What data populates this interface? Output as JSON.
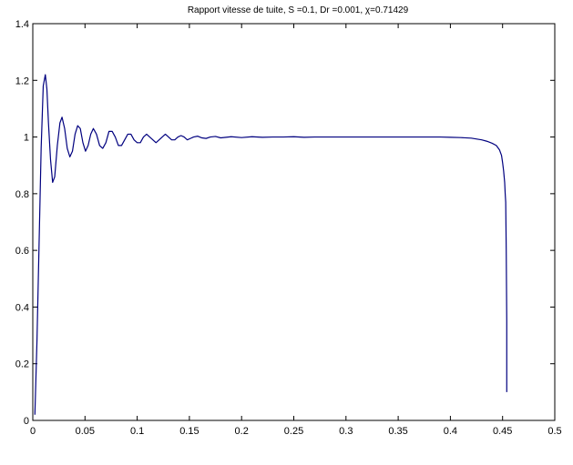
{
  "chart_data": {
    "type": "line",
    "title": "Rapport vitesse de tuite, S =0.1, Dr =0.001, χ=0.71429",
    "xlabel": "",
    "ylabel": "",
    "xlim": [
      0,
      0.5
    ],
    "ylim": [
      0,
      1.4
    ],
    "grid": false,
    "x_ticks": [
      "0",
      "0.05",
      "0.1",
      "0.15",
      "0.2",
      "0.25",
      "0.3",
      "0.35",
      "0.4",
      "0.45",
      "0.5"
    ],
    "y_ticks": [
      "0",
      "0.2",
      "0.4",
      "0.6",
      "0.8",
      "1",
      "1.2",
      "1.4"
    ],
    "line_color": "#00007f",
    "series": [
      {
        "x": [
          0.002,
          0.004,
          0.006,
          0.008,
          0.01,
          0.012,
          0.0135,
          0.015,
          0.017,
          0.019,
          0.021,
          0.0235,
          0.026,
          0.028,
          0.0305,
          0.033,
          0.0355,
          0.038,
          0.0405,
          0.043,
          0.0455,
          0.048,
          0.0505,
          0.053,
          0.0555,
          0.058,
          0.061,
          0.064,
          0.067,
          0.07,
          0.073,
          0.076,
          0.079,
          0.082,
          0.085,
          0.088,
          0.091,
          0.094,
          0.097,
          0.1,
          0.103,
          0.106,
          0.109,
          0.112,
          0.115,
          0.118,
          0.121,
          0.124,
          0.127,
          0.13,
          0.133,
          0.136,
          0.139,
          0.142,
          0.145,
          0.148,
          0.151,
          0.154,
          0.158,
          0.162,
          0.166,
          0.17,
          0.175,
          0.18,
          0.19,
          0.2,
          0.21,
          0.22,
          0.23,
          0.24,
          0.25,
          0.26,
          0.27,
          0.28,
          0.29,
          0.3,
          0.31,
          0.32,
          0.33,
          0.34,
          0.35,
          0.36,
          0.37,
          0.38,
          0.39,
          0.4,
          0.41,
          0.42,
          0.43,
          0.435,
          0.44,
          0.444,
          0.447,
          0.449,
          0.45,
          0.451,
          0.452,
          0.4525,
          0.453,
          0.4535,
          0.454,
          0.454
        ],
        "y": [
          0.02,
          0.28,
          0.62,
          0.96,
          1.18,
          1.22,
          1.17,
          1.05,
          0.92,
          0.84,
          0.86,
          0.97,
          1.05,
          1.07,
          1.03,
          0.96,
          0.93,
          0.95,
          1.01,
          1.04,
          1.03,
          0.98,
          0.95,
          0.97,
          1.01,
          1.03,
          1.01,
          0.97,
          0.96,
          0.98,
          1.02,
          1.02,
          1.0,
          0.97,
          0.97,
          0.99,
          1.01,
          1.01,
          0.99,
          0.98,
          0.98,
          1.0,
          1.01,
          1.0,
          0.99,
          0.98,
          0.99,
          1.0,
          1.01,
          1.0,
          0.99,
          0.99,
          1.0,
          1.005,
          1.0,
          0.99,
          0.995,
          1.0,
          1.003,
          0.997,
          0.995,
          1.0,
          1.002,
          0.997,
          1.001,
          0.998,
          1.001,
          0.999,
          1.0,
          1.0,
          1.001,
          0.999,
          1.0,
          1.0,
          1.0,
          1.0,
          1.0,
          1.0,
          1.0,
          1.0,
          1.0,
          1.0,
          1.0,
          1.0,
          1.0,
          0.999,
          0.998,
          0.996,
          0.99,
          0.985,
          0.978,
          0.97,
          0.955,
          0.935,
          0.91,
          0.88,
          0.84,
          0.8,
          0.77,
          0.6,
          0.35,
          0.1
        ]
      }
    ]
  }
}
